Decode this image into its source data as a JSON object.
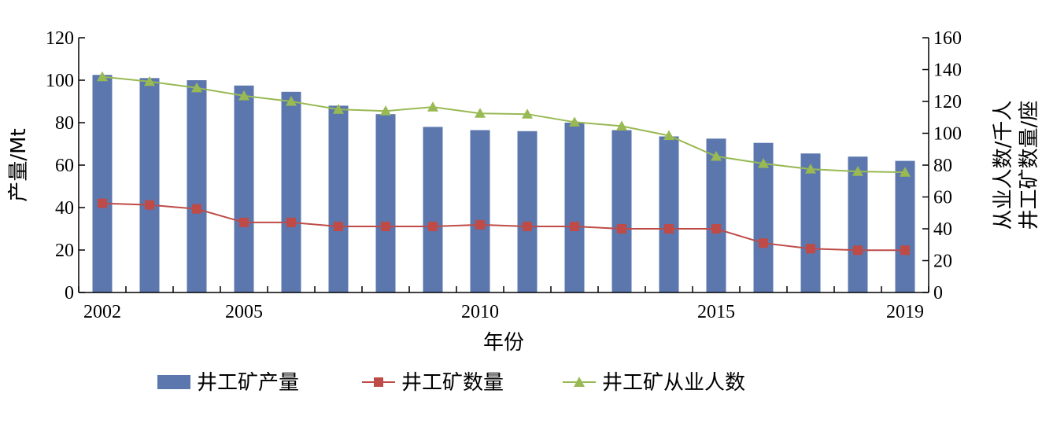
{
  "chart_data": {
    "type": "bar+line",
    "x": [
      2002,
      2003,
      2004,
      2005,
      2006,
      2007,
      2008,
      2009,
      2010,
      2011,
      2012,
      2013,
      2014,
      2015,
      2016,
      2017,
      2018,
      2019
    ],
    "x_tick_labels": [
      "2002",
      "2005",
      "2010",
      "2015",
      "2019"
    ],
    "xlabel": "年份",
    "ylabel_left": "产量/Mt",
    "ylabel_right_line1": "从业人数/千人",
    "ylabel_right_line2": "井工矿数量/座",
    "ylim_left": [
      0,
      120
    ],
    "ylim_right": [
      0,
      160
    ],
    "yticks_left": [
      "0",
      "20",
      "40",
      "60",
      "80",
      "100",
      "120"
    ],
    "yticks_right": [
      "0",
      "20",
      "40",
      "60",
      "80",
      "100",
      "120",
      "140",
      "160"
    ],
    "grid": false,
    "legend_position": "bottom",
    "series": [
      {
        "name": "井工矿产量",
        "kind": "bar",
        "axis": "left",
        "color": "#5b77ad",
        "values": [
          102.5,
          101,
          100,
          97.5,
          94.5,
          88,
          84,
          78,
          76.5,
          76,
          80,
          76.5,
          73.5,
          72.5,
          70.5,
          65.5,
          64,
          62
        ]
      },
      {
        "name": "井工矿数量",
        "kind": "line",
        "marker": "square",
        "axis": "right",
        "color": "#be4b48",
        "values": [
          56,
          55,
          52.5,
          44,
          44,
          41.5,
          41.5,
          41.5,
          42.5,
          41.5,
          41.5,
          40,
          40,
          40,
          31,
          27.5,
          26.5,
          26.5
        ]
      },
      {
        "name": "井工矿从业人数",
        "kind": "line",
        "marker": "triangle",
        "axis": "right",
        "color": "#98b954",
        "values": [
          135.5,
          132.5,
          128.5,
          123.5,
          120,
          115,
          114,
          116.5,
          112.5,
          112,
          107,
          104.5,
          98.5,
          85.5,
          81,
          77.5,
          76,
          75.5
        ]
      }
    ]
  }
}
